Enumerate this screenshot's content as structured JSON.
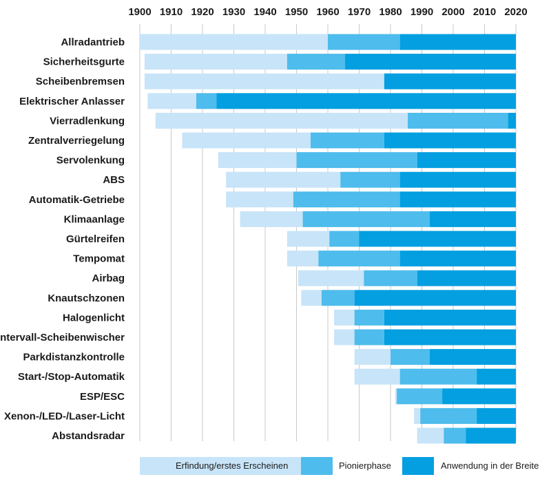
{
  "chart_data": {
    "type": "bar",
    "orientation": "horizontal-stacked-timeline",
    "xlim": [
      1900,
      2020
    ],
    "xticks": [
      "1900",
      "1910",
      "1920",
      "1930",
      "1940",
      "1950",
      "1960",
      "1970",
      "1980",
      "1990",
      "2000",
      "2010",
      "2020"
    ],
    "grid": "vertical",
    "legend_placement": "bottom",
    "colors": {
      "erfindung": "#c8e4f8",
      "pionier": "#4ebcec",
      "breite": "#039fe0",
      "grid": "#c8c8c8"
    },
    "legend": [
      {
        "key": "erfindung",
        "label": "Erfindung/erstes Erscheinen"
      },
      {
        "key": "pionier",
        "label": "Pionierphase"
      },
      {
        "key": "breite",
        "label": "Anwendung in der Breite"
      }
    ],
    "categories": [
      {
        "name": "Allradantrieb",
        "segments": [
          [
            1900,
            1960,
            "erfindung"
          ],
          [
            1960,
            1983,
            "pionier"
          ],
          [
            1983,
            2020,
            "breite"
          ]
        ]
      },
      {
        "name": "Sicherheitsgurte",
        "segments": [
          [
            1901.5,
            1947,
            "erfindung"
          ],
          [
            1947,
            1965.5,
            "pionier"
          ],
          [
            1965.5,
            2020,
            "breite"
          ]
        ]
      },
      {
        "name": "Scheibenbremsen",
        "segments": [
          [
            1901.5,
            1978,
            "erfindung"
          ],
          [
            1978,
            2020,
            "breite"
          ]
        ]
      },
      {
        "name": "Elektrischer Anlasser",
        "segments": [
          [
            1902.5,
            1918,
            "erfindung"
          ],
          [
            1918,
            1924.5,
            "pionier"
          ],
          [
            1924.5,
            2020,
            "breite"
          ]
        ]
      },
      {
        "name": "Vierradlenkung",
        "segments": [
          [
            1905,
            1985.5,
            "erfindung"
          ],
          [
            1985.5,
            2017.5,
            "pionier"
          ],
          [
            2017.5,
            2020,
            "breite"
          ]
        ]
      },
      {
        "name": "Zentralverriegelung",
        "segments": [
          [
            1913.5,
            1954.5,
            "erfindung"
          ],
          [
            1954.5,
            1978,
            "pionier"
          ],
          [
            1978,
            2020,
            "breite"
          ]
        ]
      },
      {
        "name": "Servolenkung",
        "segments": [
          [
            1925,
            1950,
            "erfindung"
          ],
          [
            1950,
            1988.5,
            "pionier"
          ],
          [
            1988.5,
            2020,
            "breite"
          ]
        ]
      },
      {
        "name": "ABS",
        "segments": [
          [
            1927.5,
            1964,
            "erfindung"
          ],
          [
            1964,
            1983,
            "pionier"
          ],
          [
            1983,
            2020,
            "breite"
          ]
        ]
      },
      {
        "name": "Automatik-Getriebe",
        "segments": [
          [
            1927.5,
            1949,
            "erfindung"
          ],
          [
            1949,
            1983,
            "pionier"
          ],
          [
            1983,
            2020,
            "breite"
          ]
        ]
      },
      {
        "name": "Klimaanlage",
        "segments": [
          [
            1932,
            1952,
            "erfindung"
          ],
          [
            1952,
            1992.5,
            "pionier"
          ],
          [
            1992.5,
            2020,
            "breite"
          ]
        ]
      },
      {
        "name": "Gürtelreifen",
        "segments": [
          [
            1947,
            1960.5,
            "erfindung"
          ],
          [
            1960.5,
            1970,
            "pionier"
          ],
          [
            1970,
            2020,
            "breite"
          ]
        ]
      },
      {
        "name": "Tempomat",
        "segments": [
          [
            1947,
            1957,
            "erfindung"
          ],
          [
            1957,
            1983,
            "pionier"
          ],
          [
            1983,
            2020,
            "breite"
          ]
        ]
      },
      {
        "name": "Airbag",
        "segments": [
          [
            1950.5,
            1971.5,
            "erfindung"
          ],
          [
            1971.5,
            1988.5,
            "pionier"
          ],
          [
            1988.5,
            2020,
            "breite"
          ]
        ]
      },
      {
        "name": "Knautschzonen",
        "segments": [
          [
            1951.5,
            1958,
            "erfindung"
          ],
          [
            1958,
            1968.5,
            "pionier"
          ],
          [
            1968.5,
            2020,
            "breite"
          ]
        ]
      },
      {
        "name": "Halogenlicht",
        "segments": [
          [
            1962,
            1968.5,
            "erfindung"
          ],
          [
            1968.5,
            1978,
            "pionier"
          ],
          [
            1978,
            2020,
            "breite"
          ]
        ]
      },
      {
        "name": "Intervall-Scheibenwischer",
        "segments": [
          [
            1962,
            1968.5,
            "erfindung"
          ],
          [
            1968.5,
            1978,
            "pionier"
          ],
          [
            1978,
            2020,
            "breite"
          ]
        ]
      },
      {
        "name": "Parkdistanzkontrolle",
        "segments": [
          [
            1968.5,
            1980,
            "erfindung"
          ],
          [
            1980,
            1992.5,
            "pionier"
          ],
          [
            1992.5,
            2020,
            "breite"
          ]
        ]
      },
      {
        "name": "Start-/Stop-Automatik",
        "segments": [
          [
            1968.5,
            1983,
            "erfindung"
          ],
          [
            1983,
            2007.5,
            "pionier"
          ],
          [
            2007.5,
            2020,
            "breite"
          ]
        ]
      },
      {
        "name": "ESP/ESC",
        "segments": [
          [
            1981.5,
            1982,
            "erfindung"
          ],
          [
            1982,
            1996.5,
            "pionier"
          ],
          [
            1996.5,
            2020,
            "breite"
          ]
        ]
      },
      {
        "name": "Xenon-/LED-/Laser-Licht",
        "segments": [
          [
            1987.5,
            1989.5,
            "erfindung"
          ],
          [
            1989.5,
            2007.5,
            "pionier"
          ],
          [
            2007.5,
            2020,
            "breite"
          ]
        ]
      },
      {
        "name": "Abstandsradar",
        "segments": [
          [
            1988.5,
            1989.5,
            "erfindung"
          ],
          [
            1989.5,
            1997,
            "erfindung"
          ],
          [
            1997,
            2004,
            "pionier"
          ],
          [
            2004,
            2020,
            "breite"
          ]
        ]
      }
    ]
  }
}
